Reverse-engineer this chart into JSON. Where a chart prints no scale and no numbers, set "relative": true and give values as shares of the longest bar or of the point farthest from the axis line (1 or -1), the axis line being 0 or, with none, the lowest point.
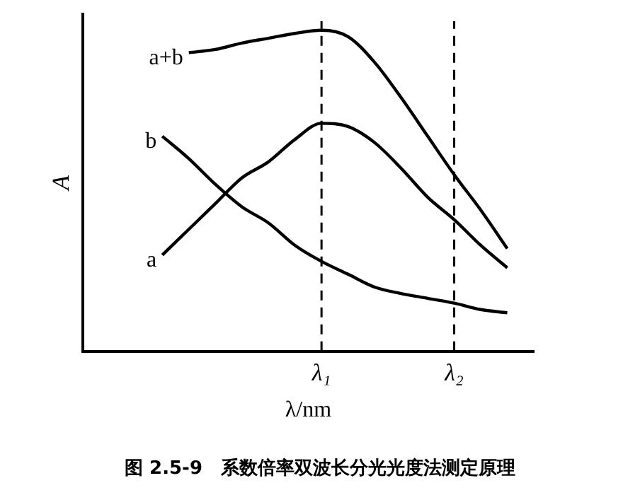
{
  "chart_data": {
    "type": "line",
    "relative": true,
    "xlabel": "λ/nm",
    "ylabel": "A",
    "categories": [
      null,
      null,
      null,
      null,
      null,
      null,
      null,
      null,
      null,
      "λ₁",
      null,
      null,
      null,
      null,
      "λ₂",
      null,
      null,
      null
    ],
    "series": [
      {
        "name": "a+b",
        "color": "#000000",
        "values": [
          null,
          null,
          null,
          null,
          0.93,
          0.94,
          0.96,
          0.975,
          0.99,
          1,
          0.98,
          0.9,
          0.79,
          0.67,
          0.55,
          0.44,
          0.32,
          null
        ]
      },
      {
        "name": "b",
        "color": "#000000",
        "values": [
          null,
          null,
          null,
          0.67,
          0.6,
          0.52,
          0.45,
          0.4,
          0.33,
          0.28,
          0.24,
          0.2,
          0.18,
          0.165,
          0.15,
          0.13,
          0.12,
          null
        ]
      },
      {
        "name": "a",
        "color": "#000000",
        "values": [
          null,
          null,
          null,
          0.3,
          0.38,
          0.46,
          0.54,
          0.59,
          0.66,
          0.71,
          0.7,
          0.65,
          0.57,
          0.48,
          0.41,
          0.33,
          0.26,
          null
        ]
      }
    ],
    "ref_lines": [
      {
        "axis": "x",
        "value": "λ₁",
        "color": "#000000",
        "line_style": "dashed"
      },
      {
        "axis": "x",
        "value": "λ₂",
        "color": "#000000",
        "line_style": "dashed"
      }
    ],
    "annotations": [
      "图 2.5-9　系数倍率双波长分光光度法测定原理"
    ],
    "grid": false,
    "legend": false,
    "marker": "none",
    "line_style": "solid"
  }
}
